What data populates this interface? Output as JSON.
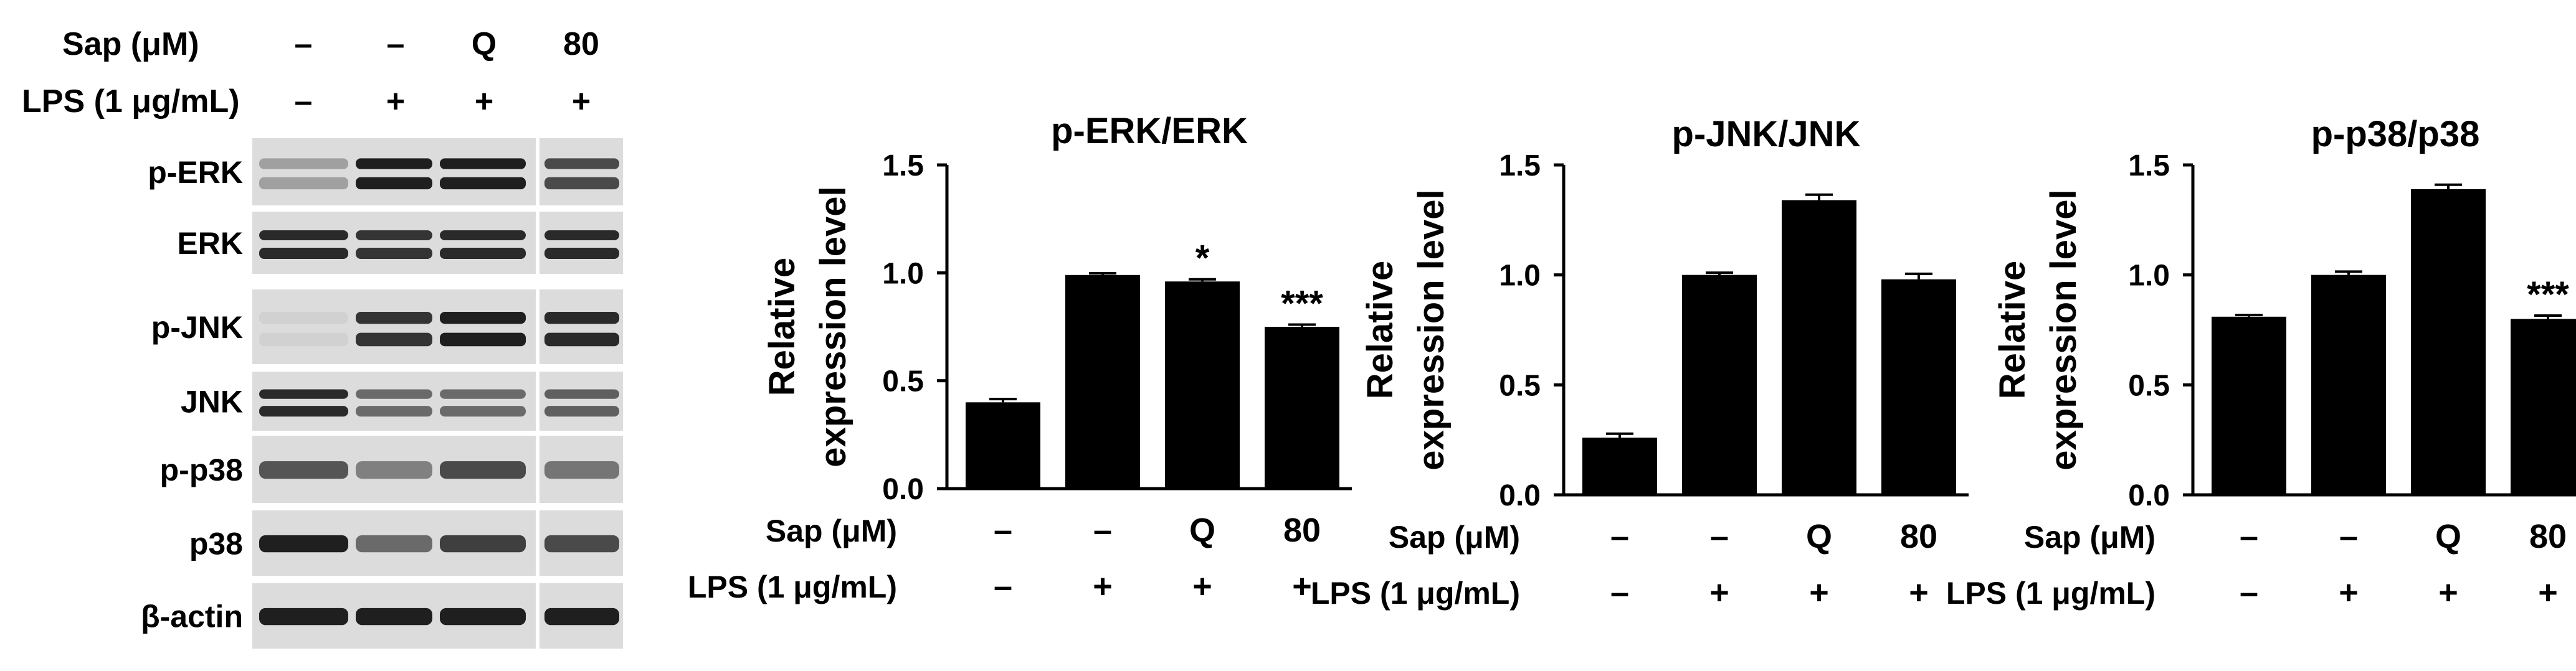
{
  "western_blot": {
    "header": {
      "sap_label": "Sap (μM)",
      "lps_label": "LPS (1 μg/mL)",
      "sap_values": [
        "–",
        "–",
        "Q",
        "80"
      ],
      "lps_values": [
        "–",
        "+",
        "+",
        "+"
      ]
    },
    "bands": [
      {
        "label": "p-ERK",
        "intensities": [
          0.35,
          0.95,
          0.95,
          0.75
        ],
        "double": true
      },
      {
        "label": "ERK",
        "intensities": [
          0.9,
          0.85,
          0.9,
          0.9
        ],
        "double": true
      },
      {
        "label": "p-JNK",
        "intensities": [
          0.12,
          0.85,
          0.95,
          0.9
        ],
        "double": true
      },
      {
        "label": "JNK",
        "intensities": [
          0.9,
          0.6,
          0.6,
          0.65
        ],
        "double": true
      },
      {
        "label": "p-p38",
        "intensities": [
          0.7,
          0.5,
          0.75,
          0.55
        ],
        "double": false
      },
      {
        "label": "p38",
        "intensities": [
          0.95,
          0.6,
          0.8,
          0.75
        ],
        "double": false
      },
      {
        "label": "β-actin",
        "intensities": [
          0.95,
          0.95,
          0.95,
          0.95
        ],
        "double": false
      }
    ]
  },
  "chart_data": [
    {
      "type": "bar",
      "title": "p-ERK/ERK",
      "ylabel": [
        "Relative",
        "expression level"
      ],
      "ylim": [
        0,
        1.5
      ],
      "yticks": [
        0.0,
        0.5,
        1.0,
        1.5
      ],
      "ytick_labels": [
        "0.0",
        "0.5",
        "1.0",
        "1.5"
      ],
      "values": [
        0.4,
        0.99,
        0.96,
        0.75
      ],
      "errors": [
        0.015,
        0.008,
        0.01,
        0.01
      ],
      "significance": [
        "",
        "",
        "*",
        "***"
      ],
      "sap_label": "Sap (μM)",
      "lps_label": "LPS (1 μg/mL)",
      "sap_values": [
        "–",
        "–",
        "Q",
        "80"
      ],
      "lps_values": [
        "–",
        "+",
        "+",
        "+"
      ],
      "bar_color": "#000000"
    },
    {
      "type": "bar",
      "title": "p-JNK/JNK",
      "ylabel": [
        "Relative",
        "expression level"
      ],
      "ylim": [
        0,
        1.5
      ],
      "yticks": [
        0.0,
        0.5,
        1.0,
        1.5
      ],
      "ytick_labels": [
        "0.0",
        "0.5",
        "1.0",
        "1.5"
      ],
      "values": [
        0.26,
        1.0,
        1.34,
        0.98
      ],
      "errors": [
        0.018,
        0.01,
        0.025,
        0.025
      ],
      "significance": [
        "",
        "",
        "",
        ""
      ],
      "sap_label": "Sap (μM)",
      "lps_label": "LPS (1 μg/mL)",
      "sap_values": [
        "–",
        "–",
        "Q",
        "80"
      ],
      "lps_values": [
        "–",
        "+",
        "+",
        "+"
      ],
      "bar_color": "#000000"
    },
    {
      "type": "bar",
      "title": "p-p38/p38",
      "ylabel": [
        "Relative",
        "expression level"
      ],
      "ylim": [
        0,
        1.5
      ],
      "yticks": [
        0.0,
        0.5,
        1.0,
        1.5
      ],
      "ytick_labels": [
        "0.0",
        "0.5",
        "1.0",
        "1.5"
      ],
      "values": [
        0.81,
        1.0,
        1.39,
        0.8
      ],
      "errors": [
        0.008,
        0.015,
        0.02,
        0.015
      ],
      "significance": [
        "",
        "",
        "",
        "***"
      ],
      "sap_label": "Sap (μM)",
      "lps_label": "LPS (1 μg/mL)",
      "sap_values": [
        "–",
        "–",
        "Q",
        "80"
      ],
      "lps_values": [
        "–",
        "+",
        "+",
        "+"
      ],
      "bar_color": "#000000"
    }
  ]
}
